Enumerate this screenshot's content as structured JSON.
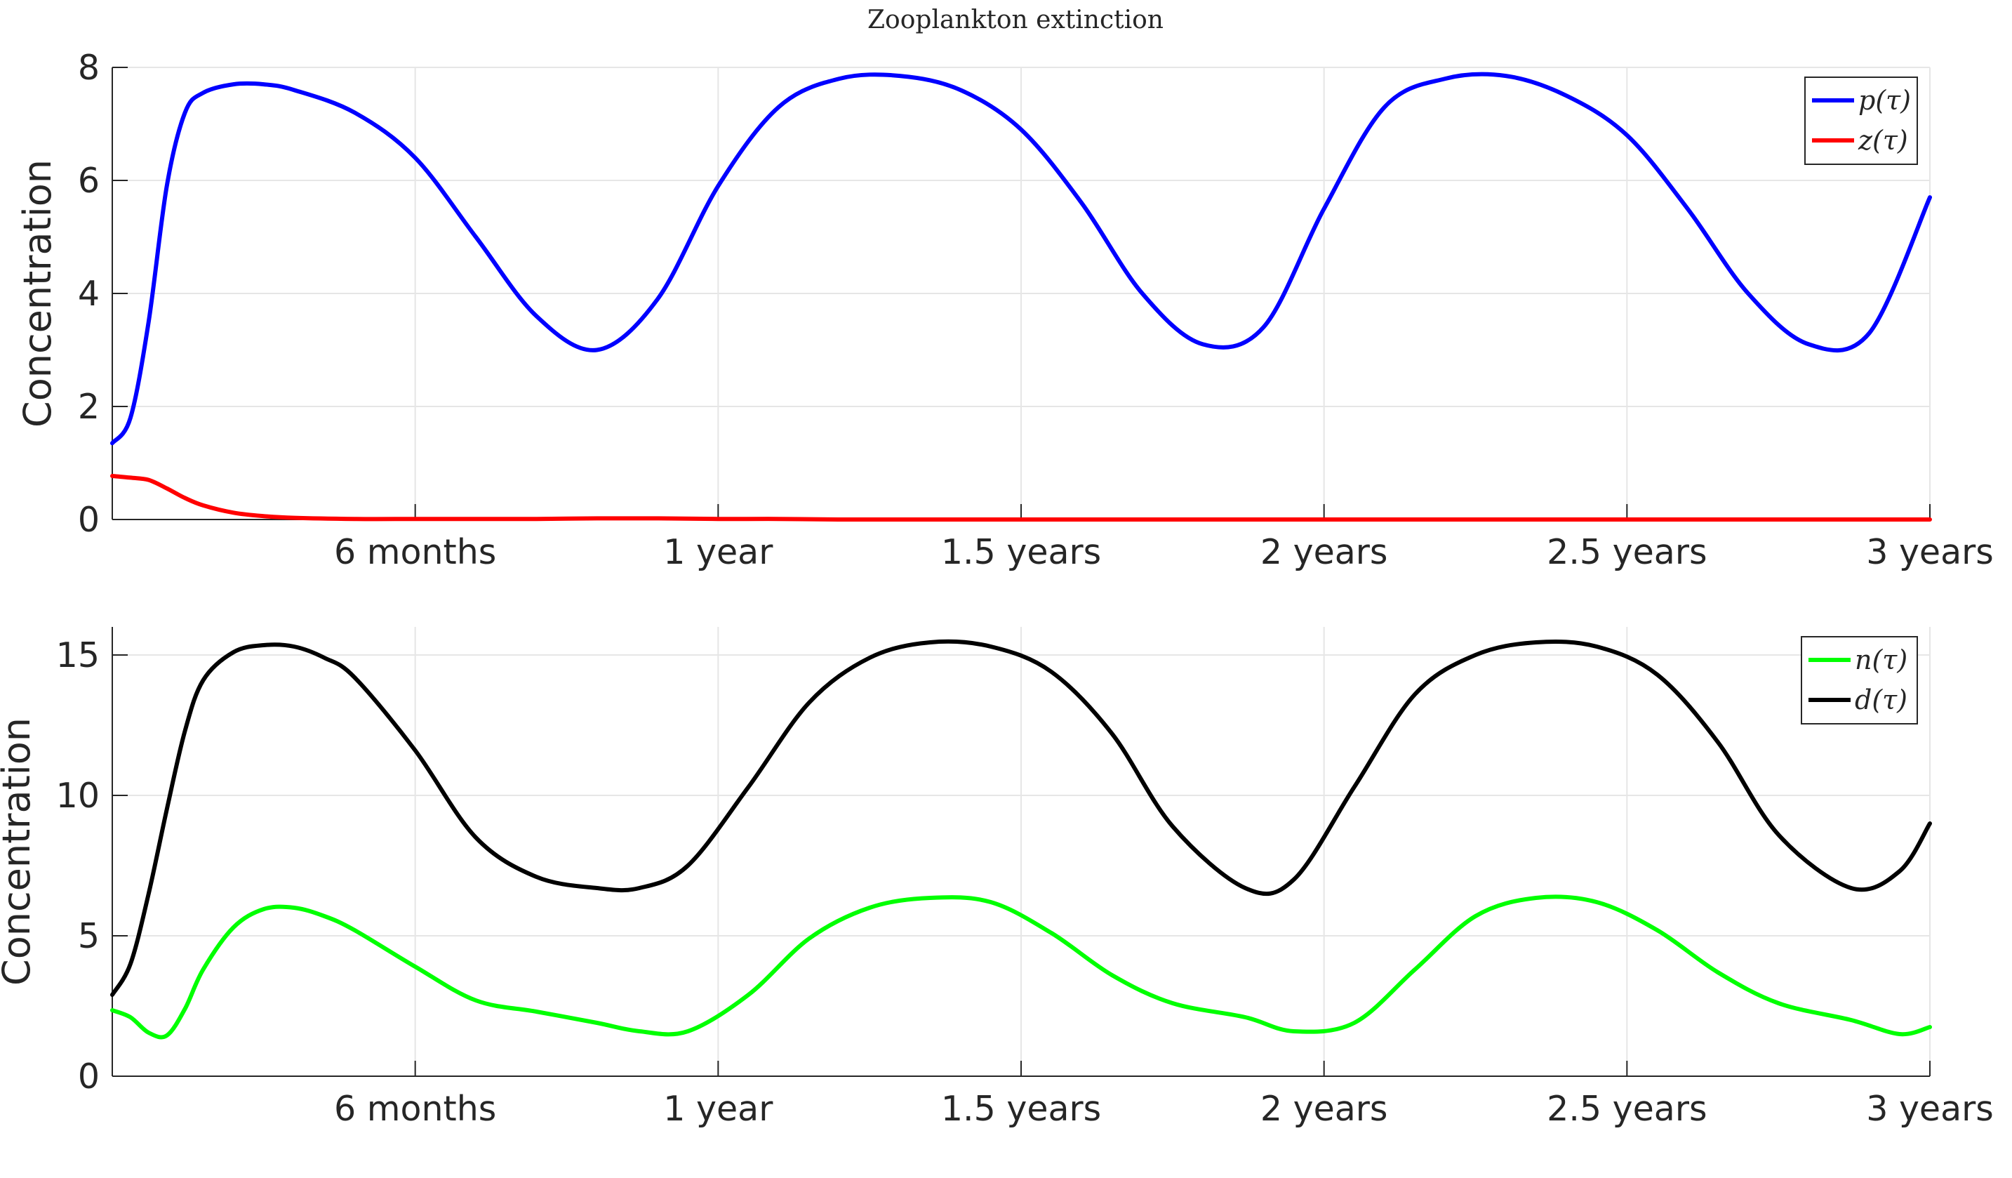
{
  "title": "Zooplankton extinction",
  "chart_data": [
    {
      "type": "line",
      "ylabel": "Concentration",
      "xlim": [
        0,
        3
      ],
      "ylim": [
        0,
        8
      ],
      "yticks": [
        0,
        2,
        4,
        6,
        8
      ],
      "xticks": [
        0.5,
        1,
        1.5,
        2,
        2.5,
        3
      ],
      "xticklabels": [
        "6 months",
        "1 year",
        "1.5 years",
        "2 years",
        "2.5 years",
        "3 years"
      ],
      "grid": true,
      "legend_position": "top-right",
      "x": [
        0,
        0.03,
        0.06,
        0.09,
        0.12,
        0.15,
        0.2,
        0.25,
        0.3,
        0.4,
        0.5,
        0.6,
        0.7,
        0.8,
        0.9,
        1.0,
        1.1,
        1.2,
        1.3,
        1.4,
        1.5,
        1.6,
        1.7,
        1.8,
        1.9,
        2.0,
        2.1,
        2.2,
        2.3,
        2.4,
        2.5,
        2.6,
        2.7,
        2.8,
        2.9,
        3.0
      ],
      "series": [
        {
          "name": "p(τ)",
          "color": "#0000ff",
          "values": [
            1.35,
            1.8,
            3.5,
            5.9,
            7.2,
            7.55,
            7.7,
            7.7,
            7.6,
            7.2,
            6.4,
            5.0,
            3.6,
            3.0,
            3.9,
            5.9,
            7.3,
            7.8,
            7.85,
            7.6,
            6.9,
            5.6,
            4.0,
            3.1,
            3.4,
            5.5,
            7.3,
            7.8,
            7.85,
            7.5,
            6.8,
            5.5,
            4.0,
            3.1,
            3.3,
            5.7
          ]
        },
        {
          "name": "z(τ)",
          "color": "#ff0000",
          "values": [
            0.77,
            0.74,
            0.7,
            0.55,
            0.38,
            0.25,
            0.12,
            0.06,
            0.03,
            0.01,
            0.01,
            0.01,
            0.01,
            0.02,
            0.02,
            0.01,
            0.01,
            0,
            0,
            0,
            0,
            0,
            0,
            0,
            0,
            0,
            0,
            0,
            0,
            0,
            0,
            0,
            0,
            0,
            0,
            0
          ]
        }
      ]
    },
    {
      "type": "line",
      "ylabel": "Concentration",
      "xlim": [
        0,
        3
      ],
      "ylim": [
        0,
        16
      ],
      "yticks": [
        0,
        5,
        10,
        15
      ],
      "xticks": [
        0.5,
        1,
        1.5,
        2,
        2.5,
        3
      ],
      "xticklabels": [
        "6 months",
        "1 year",
        "1.5 years",
        "2 years",
        "2.5 years",
        "3 years"
      ],
      "grid": true,
      "legend_position": "top-right",
      "x": [
        0,
        0.03,
        0.06,
        0.09,
        0.12,
        0.15,
        0.2,
        0.25,
        0.3,
        0.35,
        0.4,
        0.5,
        0.6,
        0.7,
        0.8,
        0.87,
        0.95,
        1.05,
        1.15,
        1.25,
        1.35,
        1.45,
        1.55,
        1.65,
        1.75,
        1.87,
        1.95,
        2.05,
        2.15,
        2.25,
        2.35,
        2.45,
        2.55,
        2.65,
        2.75,
        2.87,
        2.95,
        3.0
      ],
      "series": [
        {
          "name": "n(τ)",
          "color": "#00ff00",
          "values": [
            2.35,
            2.1,
            1.55,
            1.45,
            2.4,
            3.8,
            5.3,
            5.95,
            6.0,
            5.7,
            5.2,
            3.9,
            2.7,
            2.3,
            1.9,
            1.6,
            1.6,
            2.9,
            4.9,
            6.0,
            6.35,
            6.2,
            5.1,
            3.6,
            2.6,
            2.1,
            1.6,
            1.9,
            3.8,
            5.7,
            6.35,
            6.2,
            5.2,
            3.7,
            2.6,
            2.0,
            1.5,
            1.75
          ]
        },
        {
          "name": "d(τ)",
          "color": "#000000",
          "values": [
            2.9,
            4.0,
            6.5,
            9.5,
            12.3,
            14.1,
            15.1,
            15.35,
            15.3,
            14.9,
            14.2,
            11.6,
            8.5,
            7.1,
            6.7,
            6.7,
            7.5,
            10.3,
            13.3,
            14.9,
            15.45,
            15.3,
            14.4,
            12.2,
            8.9,
            6.7,
            7.0,
            10.3,
            13.6,
            15.0,
            15.45,
            15.3,
            14.3,
            11.9,
            8.6,
            6.7,
            7.3,
            9.0
          ]
        }
      ]
    }
  ]
}
